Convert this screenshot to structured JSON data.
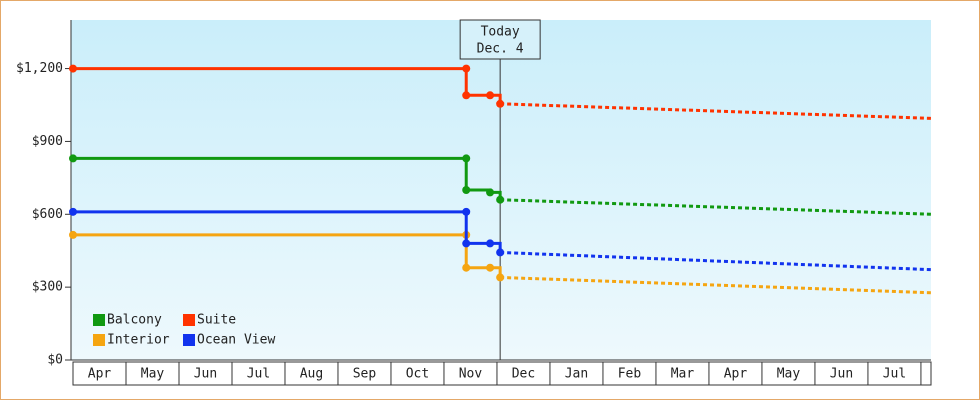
{
  "chart_data": {
    "type": "step-line",
    "x": [
      0,
      7.42,
      7.42,
      7.87,
      8.06
    ],
    "forecast_x": [
      8.06,
      16.19
    ],
    "xlim": [
      0,
      16.19
    ],
    "xticks": [
      {
        "value": 0.5,
        "label": "Apr"
      },
      {
        "value": 1.5,
        "label": "May"
      },
      {
        "value": 2.5,
        "label": "Jun"
      },
      {
        "value": 3.5,
        "label": "Jul"
      },
      {
        "value": 4.5,
        "label": "Aug"
      },
      {
        "value": 5.5,
        "label": "Sep"
      },
      {
        "value": 6.5,
        "label": "Oct"
      },
      {
        "value": 7.5,
        "label": "Nov"
      },
      {
        "value": 8.5,
        "label": "Dec"
      },
      {
        "value": 9.5,
        "label": "Jan"
      },
      {
        "value": 10.5,
        "label": "Feb"
      },
      {
        "value": 11.5,
        "label": "Mar"
      },
      {
        "value": 12.5,
        "label": "Apr"
      },
      {
        "value": 13.5,
        "label": "May"
      },
      {
        "value": 14.5,
        "label": "Jun"
      },
      {
        "value": 15.5,
        "label": "Jul"
      }
    ],
    "ylim": [
      0,
      1400
    ],
    "yticks": [
      {
        "value": 0,
        "label": "$0"
      },
      {
        "value": 300,
        "label": "$300"
      },
      {
        "value": 600,
        "label": "$600"
      },
      {
        "value": 900,
        "label": "$900"
      },
      {
        "value": 1200,
        "label": "$1,200"
      }
    ],
    "series": [
      {
        "name": "Balcony",
        "color": "#119911",
        "values": [
          830,
          830,
          700,
          690,
          660
        ],
        "forecast_values": [
          660,
          600
        ]
      },
      {
        "name": "Suite",
        "color": "#ff3300",
        "values": [
          1200,
          1200,
          1090,
          1090,
          1055
        ],
        "forecast_values": [
          1055,
          995
        ]
      },
      {
        "name": "Interior",
        "color": "#f5a511",
        "values": [
          515,
          515,
          380,
          380,
          340
        ],
        "forecast_values": [
          340,
          277
        ]
      },
      {
        "name": "Ocean View",
        "color": "#1133ee",
        "values": [
          610,
          610,
          480,
          480,
          443
        ],
        "forecast_values": [
          443,
          372
        ]
      }
    ],
    "annotation": {
      "lines": [
        "Today",
        "Dec. 4"
      ],
      "x": 8.06
    }
  }
}
